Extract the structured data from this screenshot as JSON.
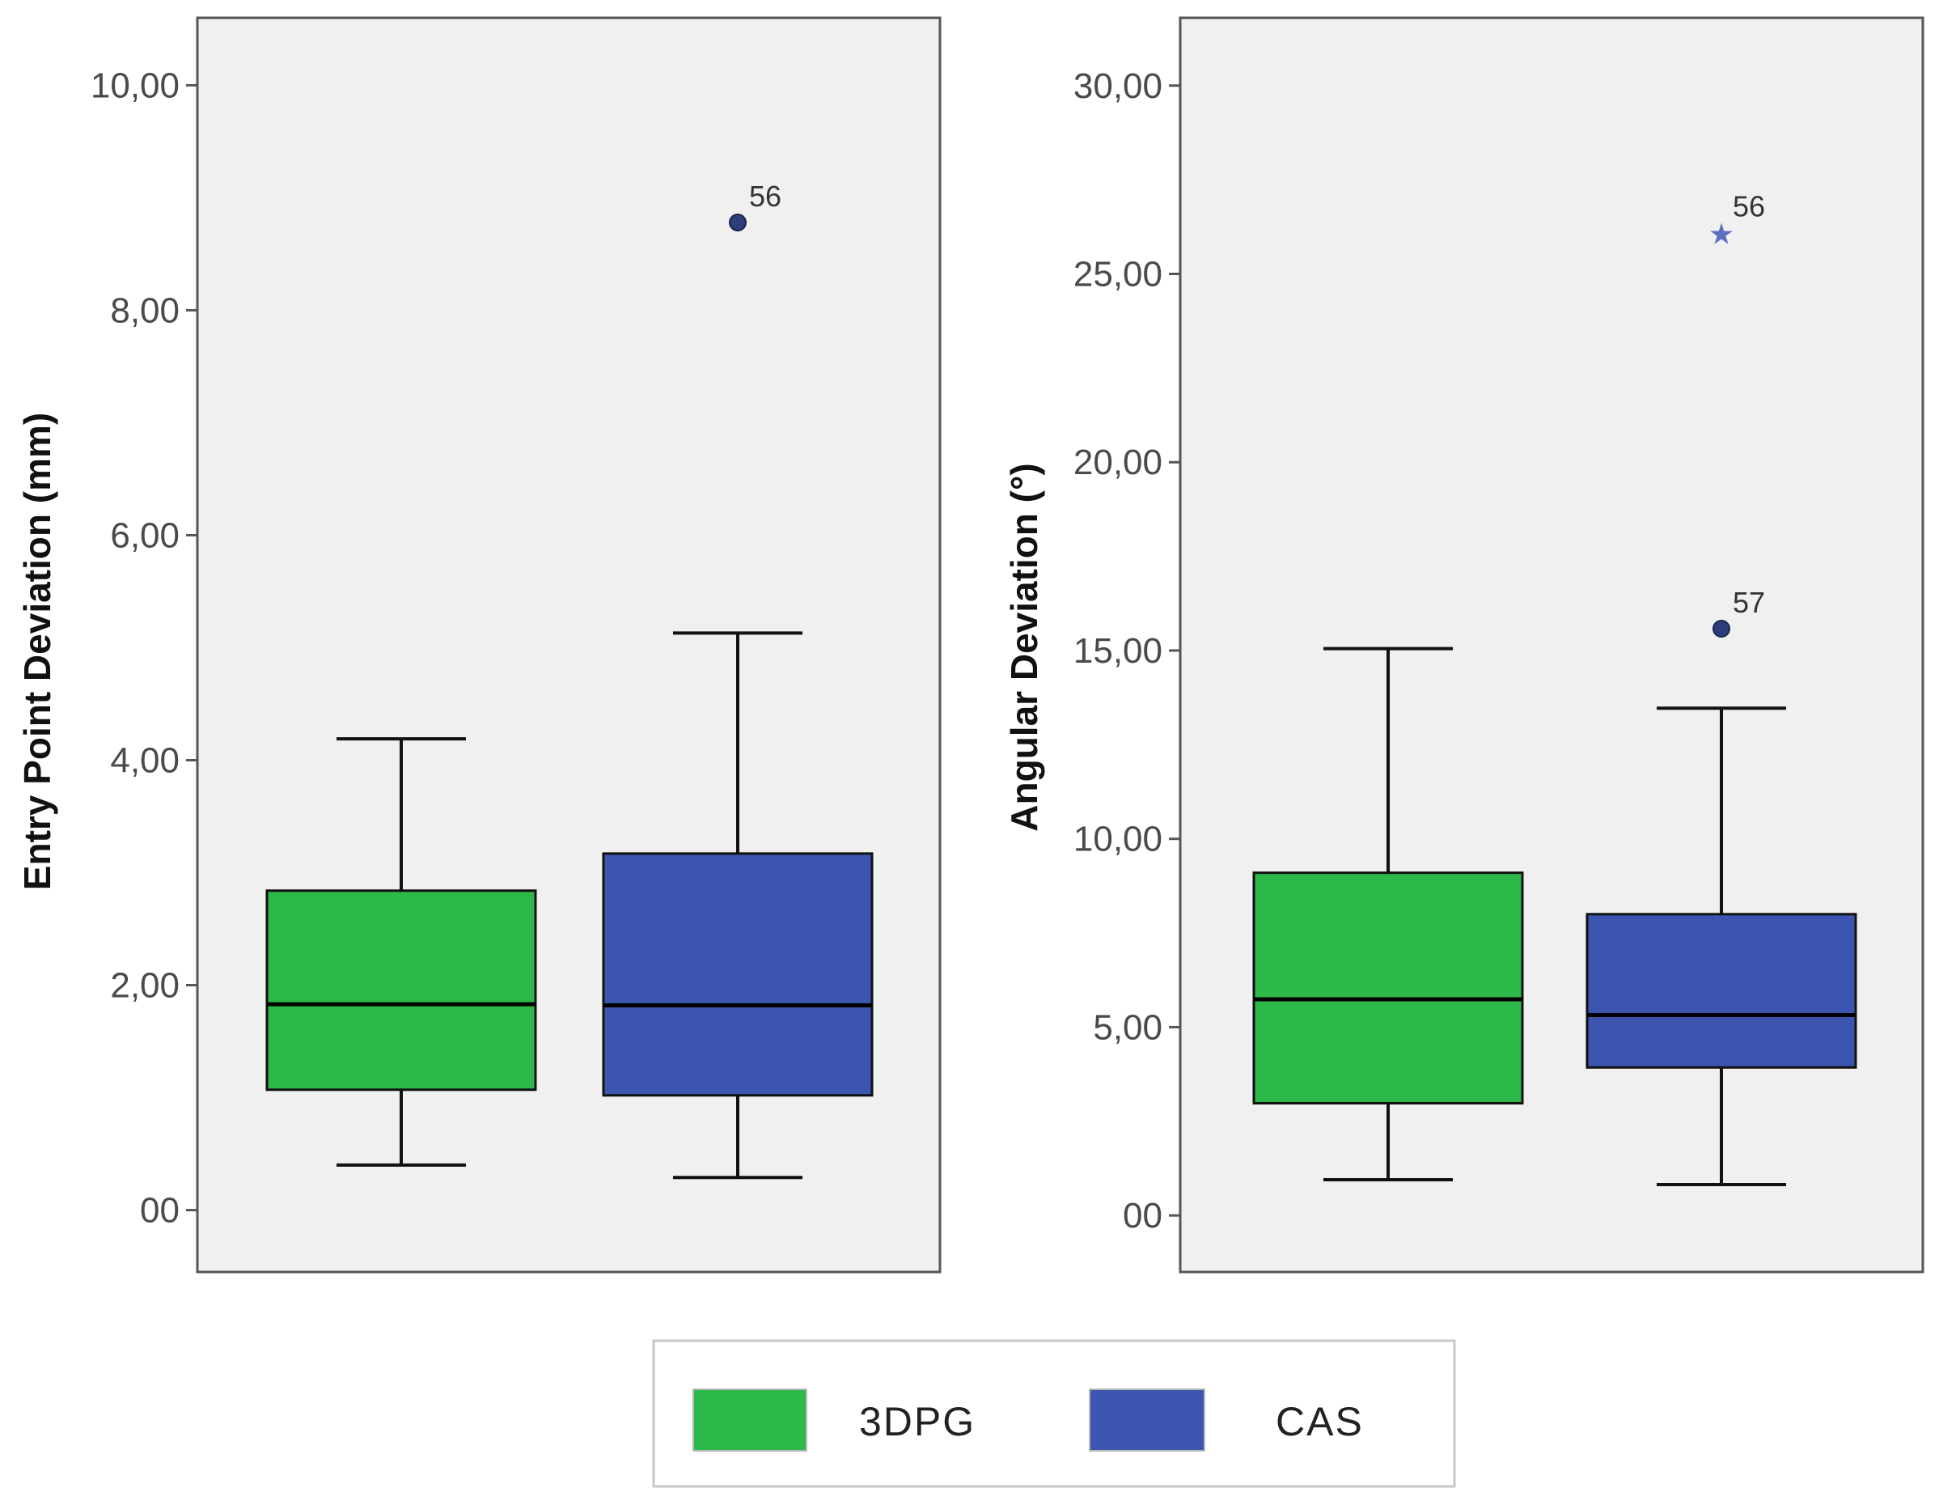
{
  "chart_data": [
    {
      "type": "box",
      "ylabel": "Entry Point Deviation (mm)",
      "ylim": [
        -0.55,
        10.6
      ],
      "yticks": [
        0,
        2,
        4,
        6,
        8,
        10
      ],
      "ytick_labels": [
        "00",
        "2,00",
        "4,00",
        "6,00",
        "8,00",
        "10,00"
      ],
      "groups": [
        {
          "name": "3DPG",
          "color": "#2db84a",
          "whisker_low": 0.4,
          "q1": 1.07,
          "median": 1.83,
          "q3": 2.84,
          "whisker_high": 4.19,
          "outliers": []
        },
        {
          "name": "CAS",
          "color": "#3b55b0",
          "whisker_low": 0.29,
          "q1": 1.02,
          "median": 1.82,
          "q3": 3.17,
          "whisker_high": 5.13,
          "outliers": [
            {
              "value": 8.78,
              "label": "56",
              "marker": "circle"
            }
          ]
        }
      ]
    },
    {
      "type": "box",
      "ylabel": "Angular Deviation (°)",
      "ylim": [
        -1.5,
        31.8
      ],
      "yticks": [
        0,
        5,
        10,
        15,
        20,
        25,
        30
      ],
      "ytick_labels": [
        "00",
        "5,00",
        "10,00",
        "15,00",
        "20,00",
        "25,00",
        "30,00"
      ],
      "groups": [
        {
          "name": "3DPG",
          "color": "#2db84a",
          "whisker_low": 0.95,
          "q1": 2.98,
          "median": 5.74,
          "q3": 9.1,
          "whisker_high": 15.05,
          "outliers": []
        },
        {
          "name": "CAS",
          "color": "#3b55b0",
          "whisker_low": 0.82,
          "q1": 3.93,
          "median": 5.32,
          "q3": 8.0,
          "whisker_high": 13.47,
          "outliers": [
            {
              "value": 26.1,
              "label": "56",
              "marker": "star"
            },
            {
              "value": 15.58,
              "label": "57",
              "marker": "circle"
            }
          ]
        }
      ]
    }
  ],
  "legend": {
    "items": [
      {
        "label": "3DPG",
        "color": "#2db84a"
      },
      {
        "label": "CAS",
        "color": "#3b55b0"
      }
    ]
  }
}
